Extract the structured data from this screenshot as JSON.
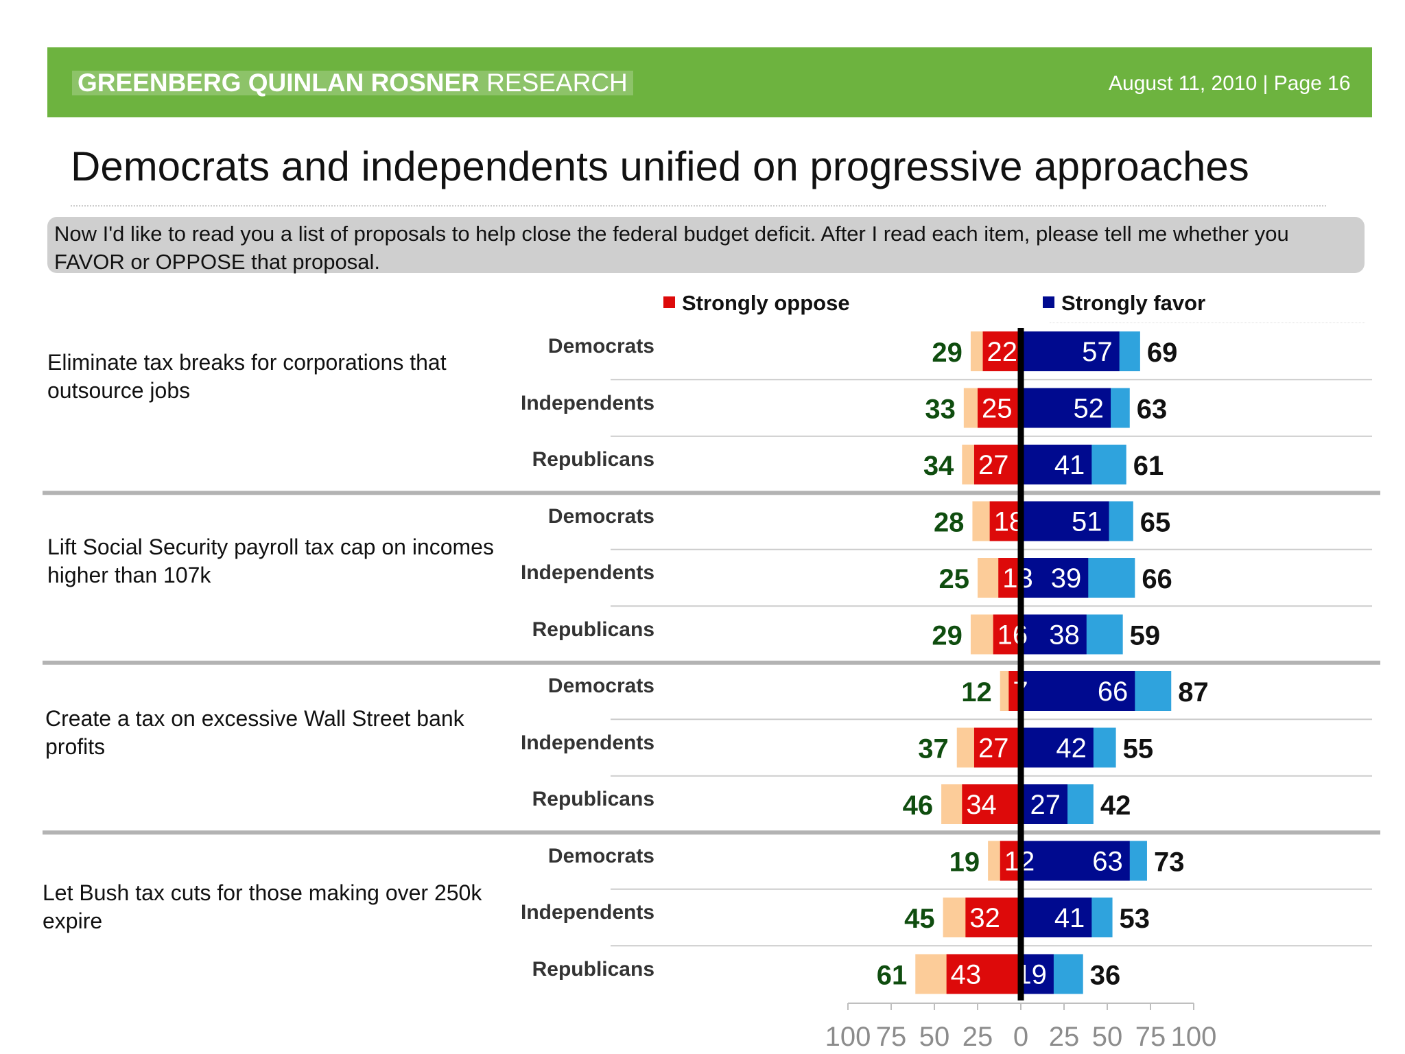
{
  "header": {
    "brand_bold": "GREENBERG QUINLAN ROSNER",
    "brand_light": "RESEARCH",
    "date_page": "August 11, 2010  |  Page 16"
  },
  "title": "Democrats and independents unified on progressive approaches",
  "question": "Now I'd like to read you a list of proposals to help close the federal budget deficit. After I read each item, please tell me whether you FAVOR or OPPOSE that proposal.",
  "colors": {
    "strongly_oppose": "#dd0a0a",
    "total_oppose": "#fccc99",
    "strongly_favor": "#000a8f",
    "total_favor": "#2fa3dd",
    "oppose_label": "#0f4d0f",
    "header_green": "#6db33f"
  },
  "chart_data": {
    "type": "bar",
    "orientation": "horizontal-diverging",
    "legend": [
      {
        "name": "Strongly oppose",
        "color": "#dd0a0a"
      },
      {
        "name": "Strongly favor",
        "color": "#000a8f"
      }
    ],
    "legend_position": "top",
    "xlim": [
      -100,
      100
    ],
    "x_ticks": [
      -100,
      -75,
      -50,
      -25,
      0,
      25,
      50,
      75,
      100
    ],
    "x_tick_labels": [
      "100",
      "75",
      "50",
      "25",
      "0",
      "25",
      "50",
      "75",
      "100"
    ],
    "proposals": [
      {
        "label": "Eliminate tax breaks for corporations that outsource jobs",
        "groups": [
          {
            "name": "Democrats",
            "total_oppose": 29,
            "strongly_oppose": 22,
            "strongly_favor": 57,
            "total_favor": 69
          },
          {
            "name": "Independents",
            "total_oppose": 33,
            "strongly_oppose": 25,
            "strongly_favor": 52,
            "total_favor": 63
          },
          {
            "name": "Republicans",
            "total_oppose": 34,
            "strongly_oppose": 27,
            "strongly_favor": 41,
            "total_favor": 61
          }
        ]
      },
      {
        "label": "Lift Social Security payroll tax cap on incomes higher than 107k",
        "groups": [
          {
            "name": "Democrats",
            "total_oppose": 28,
            "strongly_oppose": 18,
            "strongly_favor": 51,
            "total_favor": 65
          },
          {
            "name": "Independents",
            "total_oppose": 25,
            "strongly_oppose": 13,
            "strongly_favor": 39,
            "total_favor": 66
          },
          {
            "name": "Republicans",
            "total_oppose": 29,
            "strongly_oppose": 16,
            "strongly_favor": 38,
            "total_favor": 59
          }
        ]
      },
      {
        "label": "Create a tax on excessive Wall Street bank profits",
        "groups": [
          {
            "name": "Democrats",
            "total_oppose": 12,
            "strongly_oppose": 7,
            "strongly_favor": 66,
            "total_favor": 87
          },
          {
            "name": "Independents",
            "total_oppose": 37,
            "strongly_oppose": 27,
            "strongly_favor": 42,
            "total_favor": 55
          },
          {
            "name": "Republicans",
            "total_oppose": 46,
            "strongly_oppose": 34,
            "strongly_favor": 27,
            "total_favor": 42
          }
        ]
      },
      {
        "label": "Let Bush tax cuts for those making over 250k expire",
        "groups": [
          {
            "name": "Democrats",
            "total_oppose": 19,
            "strongly_oppose": 12,
            "strongly_favor": 63,
            "total_favor": 73
          },
          {
            "name": "Independents",
            "total_oppose": 45,
            "strongly_oppose": 32,
            "strongly_favor": 41,
            "total_favor": 53
          },
          {
            "name": "Republicans",
            "total_oppose": 61,
            "strongly_oppose": 43,
            "strongly_favor": 19,
            "total_favor": 36
          }
        ]
      }
    ]
  }
}
